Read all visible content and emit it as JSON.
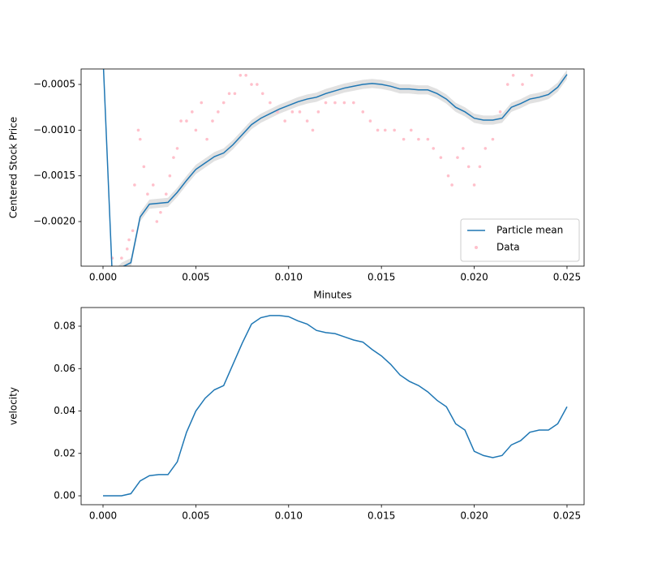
{
  "chart_data": [
    {
      "type": "line",
      "xlabel": "Minutes",
      "ylabel": "Centered Stock Price",
      "xlim": [
        -0.00118,
        0.02592
      ],
      "ylim": [
        -0.002488,
        -0.000331
      ],
      "xticks": [
        {
          "value": 0,
          "label": "0.000"
        },
        {
          "value": 0.005,
          "label": "0.005"
        },
        {
          "value": 0.01,
          "label": "0.010"
        },
        {
          "value": 0.015,
          "label": "0.015"
        },
        {
          "value": 0.02,
          "label": "0.020"
        },
        {
          "value": 0.025,
          "label": "0.025"
        }
      ],
      "yticks": [
        {
          "value": -0.002,
          "label": "−0.0020"
        },
        {
          "value": -0.0015,
          "label": "−0.0015"
        },
        {
          "value": -0.001,
          "label": "−0.0010"
        },
        {
          "value": -0.0005,
          "label": "−0.0005"
        }
      ],
      "legend": "lower right",
      "x": [
        0,
        0.0005,
        0.001,
        0.0015,
        0.002,
        0.0025,
        0.003,
        0.0035,
        0.004,
        0.0045,
        0.005,
        0.0055,
        0.006,
        0.0065,
        0.007,
        0.0075,
        0.008,
        0.0085,
        0.009,
        0.0095,
        0.01,
        0.0105,
        0.011,
        0.0115,
        0.012,
        0.0125,
        0.013,
        0.0135,
        0.014,
        0.0145,
        0.015,
        0.0155,
        0.016,
        0.0165,
        0.017,
        0.0175,
        0.018,
        0.0185,
        0.019,
        0.0195,
        0.02,
        0.0205,
        0.021,
        0.0215,
        0.022,
        0.0225,
        0.023,
        0.0235,
        0.024,
        0.0245,
        0.025
      ],
      "series": [
        {
          "name": "Particle mean",
          "color": "#1f77b4",
          "values": [
            -0.0002,
            -0.0026,
            -0.0025,
            -0.00245,
            -0.00195,
            -0.00181,
            -0.0018,
            -0.00179,
            -0.00168,
            -0.00155,
            -0.00143,
            -0.00136,
            -0.00129,
            -0.00125,
            -0.00116,
            -0.00105,
            -0.00094,
            -0.00087,
            -0.00082,
            -0.00077,
            -0.00073,
            -0.00069,
            -0.00066,
            -0.00064,
            -0.0006,
            -0.00057,
            -0.00054,
            -0.00052,
            -0.0005,
            -0.00049,
            -0.0005,
            -0.00052,
            -0.00055,
            -0.00055,
            -0.00056,
            -0.00056,
            -0.0006,
            -0.00066,
            -0.00075,
            -0.0008,
            -0.00087,
            -0.00089,
            -0.00089,
            -0.00087,
            -0.00075,
            -0.00071,
            -0.00066,
            -0.00064,
            -0.00061,
            -0.00053,
            -0.00039
          ]
        }
      ],
      "band": {
        "color": "#d9d9d9",
        "lower": [
          -0.00025,
          -0.00265,
          -0.00255,
          -0.0025,
          -0.002,
          -0.00186,
          -0.00185,
          -0.00184,
          -0.00173,
          -0.0016,
          -0.00148,
          -0.00141,
          -0.00134,
          -0.0013,
          -0.00121,
          -0.0011,
          -0.00099,
          -0.00092,
          -0.00087,
          -0.00082,
          -0.00078,
          -0.00074,
          -0.00071,
          -0.00069,
          -0.00065,
          -0.00062,
          -0.00059,
          -0.00057,
          -0.00055,
          -0.00054,
          -0.00055,
          -0.00057,
          -0.0006,
          -0.0006,
          -0.00061,
          -0.00061,
          -0.00065,
          -0.00071,
          -0.0008,
          -0.00085,
          -0.00092,
          -0.00094,
          -0.00094,
          -0.00092,
          -0.0008,
          -0.00076,
          -0.00071,
          -0.00069,
          -0.00066,
          -0.00058,
          -0.00044
        ],
        "upper": [
          -0.00015,
          -0.00255,
          -0.00245,
          -0.0024,
          -0.0019,
          -0.00176,
          -0.00175,
          -0.00174,
          -0.00163,
          -0.0015,
          -0.00138,
          -0.00131,
          -0.00124,
          -0.0012,
          -0.00111,
          -0.001,
          -0.00089,
          -0.00082,
          -0.00077,
          -0.00072,
          -0.00068,
          -0.00064,
          -0.00061,
          -0.00059,
          -0.00055,
          -0.00052,
          -0.00049,
          -0.00047,
          -0.00045,
          -0.00044,
          -0.00045,
          -0.00047,
          -0.0005,
          -0.0005,
          -0.00051,
          -0.00051,
          -0.00055,
          -0.00061,
          -0.0007,
          -0.00075,
          -0.00082,
          -0.00084,
          -0.00084,
          -0.00082,
          -0.0007,
          -0.00066,
          -0.00061,
          -0.00059,
          -0.00056,
          -0.00048,
          -0.00034
        ]
      },
      "scatter": {
        "name": "Data",
        "color": "#ffc0cb",
        "x": [
          0.0005,
          0.001,
          0.0013,
          0.0014,
          0.0016,
          0.0017,
          0.0019,
          0.002,
          0.0022,
          0.0024,
          0.0027,
          0.0029,
          0.0031,
          0.0034,
          0.0036,
          0.0038,
          0.004,
          0.0042,
          0.0045,
          0.0048,
          0.005,
          0.0053,
          0.0056,
          0.0059,
          0.0062,
          0.0065,
          0.0068,
          0.0071,
          0.0074,
          0.0077,
          0.008,
          0.0083,
          0.0086,
          0.009,
          0.0094,
          0.0098,
          0.0102,
          0.0106,
          0.011,
          0.0113,
          0.0116,
          0.012,
          0.0125,
          0.013,
          0.0135,
          0.014,
          0.0144,
          0.0148,
          0.0152,
          0.0157,
          0.0162,
          0.0166,
          0.017,
          0.0175,
          0.0178,
          0.0182,
          0.0186,
          0.0188,
          0.0191,
          0.0194,
          0.0197,
          0.02,
          0.0203,
          0.0206,
          0.021,
          0.0214,
          0.0218,
          0.0221,
          0.0226,
          0.0231
        ],
        "values": [
          -0.0024,
          -0.0024,
          -0.0023,
          -0.0022,
          -0.0021,
          -0.0016,
          -0.001,
          -0.0011,
          -0.0014,
          -0.0017,
          -0.0016,
          -0.002,
          -0.0019,
          -0.0017,
          -0.0015,
          -0.0013,
          -0.0012,
          -0.0009,
          -0.0009,
          -0.0008,
          -0.001,
          -0.0007,
          -0.0011,
          -0.0009,
          -0.0008,
          -0.0007,
          -0.0006,
          -0.0006,
          -0.0004,
          -0.0004,
          -0.0005,
          -0.0005,
          -0.0006,
          -0.0007,
          -0.0008,
          -0.0009,
          -0.0008,
          -0.0008,
          -0.0009,
          -0.001,
          -0.0008,
          -0.0007,
          -0.0007,
          -0.0007,
          -0.0007,
          -0.0008,
          -0.0009,
          -0.001,
          -0.001,
          -0.001,
          -0.0011,
          -0.001,
          -0.0011,
          -0.0011,
          -0.0012,
          -0.0013,
          -0.0015,
          -0.0016,
          -0.0013,
          -0.0012,
          -0.0014,
          -0.0016,
          -0.0014,
          -0.0012,
          -0.0011,
          -0.0008,
          -0.0005,
          -0.0004,
          -0.0005,
          -0.0004
        ]
      }
    },
    {
      "type": "line",
      "ylabel": "velocity",
      "xlim": [
        -0.00118,
        0.02592
      ],
      "ylim": [
        -0.0042,
        0.0888
      ],
      "xticks": [
        {
          "value": 0,
          "label": "0.000"
        },
        {
          "value": 0.005,
          "label": "0.005"
        },
        {
          "value": 0.01,
          "label": "0.010"
        },
        {
          "value": 0.015,
          "label": "0.015"
        },
        {
          "value": 0.02,
          "label": "0.020"
        },
        {
          "value": 0.025,
          "label": "0.025"
        }
      ],
      "yticks": [
        {
          "value": 0,
          "label": "0.00"
        },
        {
          "value": 0.02,
          "label": "0.02"
        },
        {
          "value": 0.04,
          "label": "0.04"
        },
        {
          "value": 0.06,
          "label": "0.06"
        },
        {
          "value": 0.08,
          "label": "0.08"
        }
      ],
      "x": [
        0,
        0.0005,
        0.001,
        0.0015,
        0.002,
        0.0025,
        0.003,
        0.0035,
        0.004,
        0.0045,
        0.005,
        0.0055,
        0.006,
        0.0065,
        0.007,
        0.0075,
        0.008,
        0.0085,
        0.009,
        0.0095,
        0.01,
        0.0105,
        0.011,
        0.0115,
        0.012,
        0.0125,
        0.013,
        0.0135,
        0.014,
        0.0145,
        0.015,
        0.0155,
        0.016,
        0.0165,
        0.017,
        0.0175,
        0.018,
        0.0185,
        0.019,
        0.0195,
        0.02,
        0.0205,
        0.021,
        0.0215,
        0.022,
        0.0225,
        0.023,
        0.0235,
        0.024,
        0.0245,
        0.025
      ],
      "series": [
        {
          "color": "#1f77b4",
          "values": [
            0,
            0,
            0,
            0.001,
            0.007,
            0.0095,
            0.01,
            0.01,
            0.016,
            0.03,
            0.04,
            0.046,
            0.05,
            0.052,
            0.062,
            0.072,
            0.081,
            0.084,
            0.085,
            0.085,
            0.0845,
            0.0825,
            0.081,
            0.078,
            0.077,
            0.0765,
            0.075,
            0.0735,
            0.0725,
            0.069,
            0.066,
            0.062,
            0.057,
            0.054,
            0.052,
            0.049,
            0.045,
            0.042,
            0.034,
            0.031,
            0.021,
            0.019,
            0.018,
            0.019,
            0.024,
            0.026,
            0.03,
            0.031,
            0.031,
            0.034,
            0.042
          ]
        }
      ]
    }
  ]
}
